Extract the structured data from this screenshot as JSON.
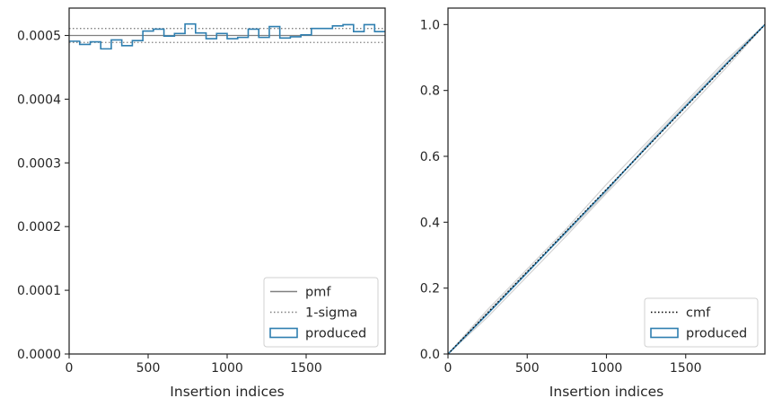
{
  "chart_data": [
    {
      "type": "line",
      "xlabel": "Insertion indices",
      "xlim": [
        0,
        2000
      ],
      "ylim": [
        0,
        0.000543
      ],
      "xticks": [
        0,
        500,
        1000,
        1500
      ],
      "xtick_labels": [
        "0",
        "500",
        "1000",
        "1500"
      ],
      "yticks": [
        0,
        0.0001,
        0.0002,
        0.0003,
        0.0004,
        0.0005
      ],
      "ytick_labels": [
        "0.0000",
        "0.0001",
        "0.0002",
        "0.0003",
        "0.0004",
        "0.0005"
      ],
      "grid": false,
      "legend_position": "lower-right",
      "series": [
        {
          "name": "pmf",
          "style": "solid",
          "color": "#808080",
          "x": [
            0,
            2000
          ],
          "y": [
            0.0005,
            0.0005
          ]
        },
        {
          "name": "1-sigma",
          "style": "dotted",
          "color": "#808080",
          "upper": 0.000511,
          "lower": 0.000489
        },
        {
          "name": "produced",
          "style": "step",
          "color": "#2f7fb0",
          "bin_width": 66.67,
          "values": [
            0.000491,
            0.000486,
            0.00049,
            0.000479,
            0.000493,
            0.000484,
            0.000492,
            0.000507,
            0.00051,
            0.000499,
            0.000503,
            0.000518,
            0.000504,
            0.000495,
            0.000503,
            0.000495,
            0.000497,
            0.00051,
            0.000497,
            0.000514,
            0.000496,
            0.000498,
            0.000501,
            0.000511,
            0.000511,
            0.000515,
            0.000517,
            0.000506,
            0.000517,
            0.000506
          ]
        }
      ]
    },
    {
      "type": "line",
      "xlabel": "Insertion indices",
      "xlim": [
        0,
        2000
      ],
      "ylim": [
        0,
        1.05
      ],
      "xticks": [
        0,
        500,
        1000,
        1500
      ],
      "xtick_labels": [
        "0",
        "500",
        "1000",
        "1500"
      ],
      "yticks": [
        0,
        0.2,
        0.4,
        0.6,
        0.8,
        1.0
      ],
      "ytick_labels": [
        "0.0",
        "0.2",
        "0.4",
        "0.6",
        "0.8",
        "1.0"
      ],
      "grid": false,
      "legend_position": "lower-right",
      "series": [
        {
          "name": "cmf",
          "style": "dotted",
          "color": "#000000",
          "x": [
            0,
            2000
          ],
          "y": [
            0,
            1
          ]
        },
        {
          "name": "produced",
          "style": "solid",
          "color": "#2f7fb0",
          "x": [
            0,
            250,
            500,
            750,
            1000,
            1250,
            1500,
            1750,
            2000
          ],
          "y": [
            0,
            0.122,
            0.247,
            0.373,
            0.498,
            0.626,
            0.752,
            0.877,
            1.0
          ]
        },
        {
          "name": "",
          "style": "faint",
          "color": "#c8c8c8",
          "x": [
            0,
            250,
            500,
            750,
            1000,
            1250,
            1500,
            1750,
            2000
          ],
          "y": [
            0,
            0.135,
            0.258,
            0.382,
            0.515,
            0.64,
            0.765,
            0.89,
            1.0
          ]
        },
        {
          "name": "",
          "style": "faint",
          "color": "#c8c8c8",
          "x": [
            0,
            250,
            500,
            750,
            1000,
            1250,
            1500,
            1750,
            2000
          ],
          "y": [
            0,
            0.112,
            0.236,
            0.36,
            0.488,
            0.612,
            0.738,
            0.866,
            1.0
          ]
        },
        {
          "name": "",
          "style": "faint",
          "color": "#c8c8c8",
          "x": [
            0,
            250,
            500,
            750,
            1000,
            1250,
            1500,
            1750,
            2000
          ],
          "y": [
            0,
            0.128,
            0.251,
            0.368,
            0.492,
            0.632,
            0.758,
            0.882,
            1.0
          ]
        }
      ]
    }
  ]
}
